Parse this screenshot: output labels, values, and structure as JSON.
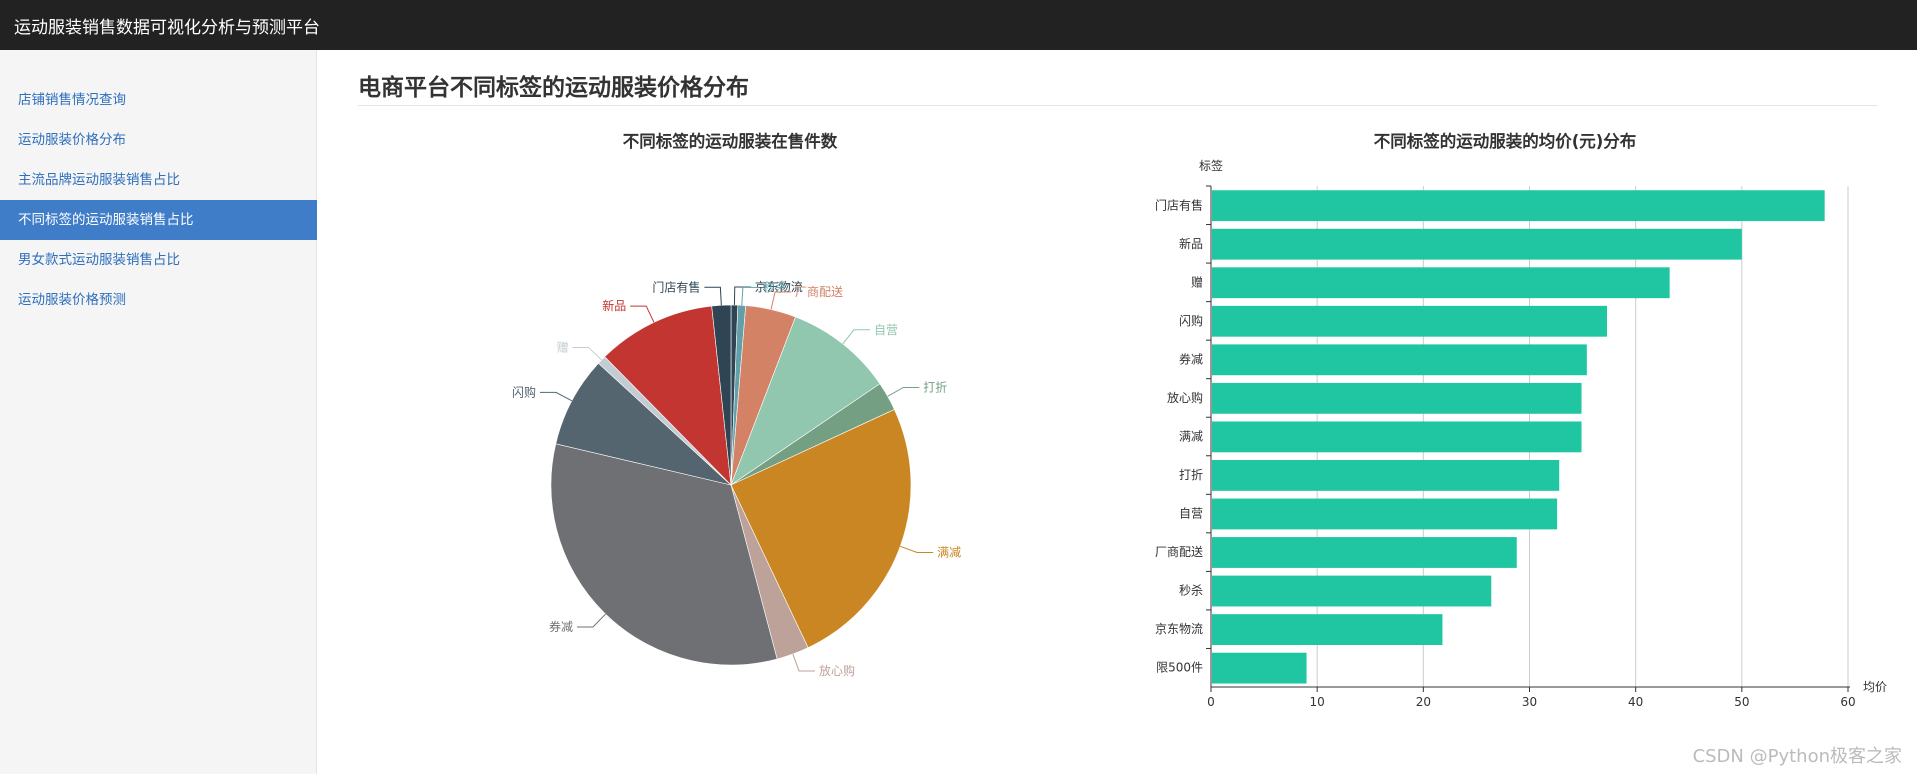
{
  "app": {
    "title": "运动服装销售数据可视化分析与预测平台"
  },
  "sidebar": {
    "items": [
      {
        "label": "店铺销售情况查询",
        "active": false
      },
      {
        "label": "运动服装价格分布",
        "active": false
      },
      {
        "label": "主流品牌运动服装销售占比",
        "active": false
      },
      {
        "label": "不同标签的运动服装销售占比",
        "active": true
      },
      {
        "label": "男女款式运动服装销售占比",
        "active": false
      },
      {
        "label": "运动服装价格预测",
        "active": false
      }
    ]
  },
  "main": {
    "title": "电商平台不同标签的运动服装价格分布"
  },
  "watermark": "CSDN @Python极客之家",
  "chart_data": [
    {
      "type": "pie",
      "title": "不同标签的运动服装在售件数",
      "start_angle_deg": 90,
      "clockwise": true,
      "slices": [
        {
          "label": "限500件",
          "value": 0.0,
          "color": "#c23531"
        },
        {
          "label": "京东物流",
          "value": 0.6,
          "color": "#2f4554"
        },
        {
          "label": "秒杀",
          "value": 0.7,
          "color": "#61a0a8"
        },
        {
          "label": "厂商配送",
          "value": 4.5,
          "color": "#d48265"
        },
        {
          "label": "自营",
          "value": 9.6,
          "color": "#91c7ae"
        },
        {
          "label": "打折",
          "value": 2.6,
          "color": "#749f83"
        },
        {
          "label": "满减",
          "value": 24.7,
          "color": "#ca8622"
        },
        {
          "label": "放心购",
          "value": 2.9,
          "color": "#bda29a"
        },
        {
          "label": "券减",
          "value": 32.6,
          "color": "#6e7074"
        },
        {
          "label": "闪购",
          "value": 8.1,
          "color": "#546570"
        },
        {
          "label": "赠",
          "value": 0.8,
          "color": "#c4ccd3"
        },
        {
          "label": "新品",
          "value": 10.6,
          "color": "#c23531"
        },
        {
          "label": "门店有售",
          "value": 1.7,
          "color": "#2f4554"
        },
        {
          "label": "京东物流",
          "value": 0.0,
          "color": "#2f4554"
        },
        {
          "label": "",
          "value": 0.0,
          "color": "#000000"
        }
      ]
    },
    {
      "type": "bar",
      "orientation": "horizontal",
      "title": "不同标签的运动服装的均价(元)分布",
      "ylabel": "标签",
      "xlabel": "均价",
      "xlim": [
        0,
        60
      ],
      "xticks": [
        0,
        10,
        20,
        30,
        40,
        50,
        60
      ],
      "bar_color": "#1fc6a1",
      "categories": [
        "门店有售",
        "新品",
        "赠",
        "闪购",
        "券减",
        "放心购",
        "满减",
        "打折",
        "自营",
        "厂商配送",
        "秒杀",
        "京东物流",
        "限500件"
      ],
      "values": [
        57.8,
        50.0,
        43.2,
        37.3,
        35.4,
        34.9,
        34.9,
        32.8,
        32.6,
        28.8,
        26.4,
        21.8,
        9.0
      ]
    }
  ]
}
